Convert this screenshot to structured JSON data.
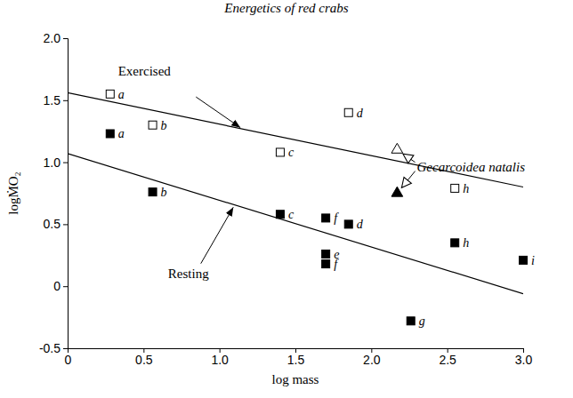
{
  "chart_data": {
    "type": "scatter",
    "title": "Energetics of red crabs",
    "x_label": "log mass",
    "y_label": "logṀO₂",
    "xlim": [
      0,
      3
    ],
    "ylim": [
      -0.5,
      2
    ],
    "xticks": [
      0,
      0.5,
      {
        "value": 1,
        "label": "1.0"
      },
      1.5,
      {
        "value": 2,
        "label": "2.0"
      },
      2.5,
      {
        "value": 3,
        "label": "3.0"
      }
    ],
    "yticks": [
      -0.5,
      0,
      0.5,
      {
        "value": 1,
        "label": "1.0"
      },
      1.5,
      {
        "value": 2,
        "label": "2.0"
      }
    ],
    "grid": false,
    "series": [
      {
        "name": "Exercised",
        "type": "line",
        "color": "#000000",
        "line_style": "solid",
        "x": [
          0,
          3
        ],
        "values": [
          1.56,
          0.8
        ]
      },
      {
        "name": "Resting",
        "type": "line",
        "color": "#000000",
        "line_style": "solid",
        "x": [
          0,
          3
        ],
        "values": [
          1.07,
          -0.06
        ]
      },
      {
        "type": "scatter",
        "marker": "square-open",
        "color": "#000000",
        "x": [
          0.28,
          0.56,
          1.4,
          1.85,
          2.55
        ],
        "values": [
          1.55,
          1.3,
          1.08,
          1.4,
          0.79
        ],
        "labels": [
          "a",
          "b",
          "c",
          "d",
          "h"
        ]
      },
      {
        "type": "scatter",
        "marker": "square",
        "color": "#000000",
        "x": [
          0.28,
          0.56,
          1.4,
          1.7,
          1.85,
          1.7,
          1.7,
          2.26,
          2.55,
          3.0
        ],
        "values": [
          1.23,
          0.76,
          0.58,
          0.55,
          0.5,
          0.26,
          0.18,
          -0.28,
          0.35,
          0.21
        ],
        "labels": [
          "a",
          "b",
          "c",
          "f",
          "d",
          "e",
          "f",
          "g",
          "h",
          "i"
        ]
      },
      {
        "type": "scatter",
        "marker": "triangle-open",
        "color": "#000000",
        "x": [
          2.17
        ],
        "values": [
          1.1
        ]
      },
      {
        "type": "scatter",
        "marker": "triangle",
        "color": "#000000",
        "x": [
          2.17
        ],
        "values": [
          0.75
        ]
      }
    ],
    "annotations": [
      {
        "text": "Gecarcoidea natalis"
      }
    ]
  }
}
